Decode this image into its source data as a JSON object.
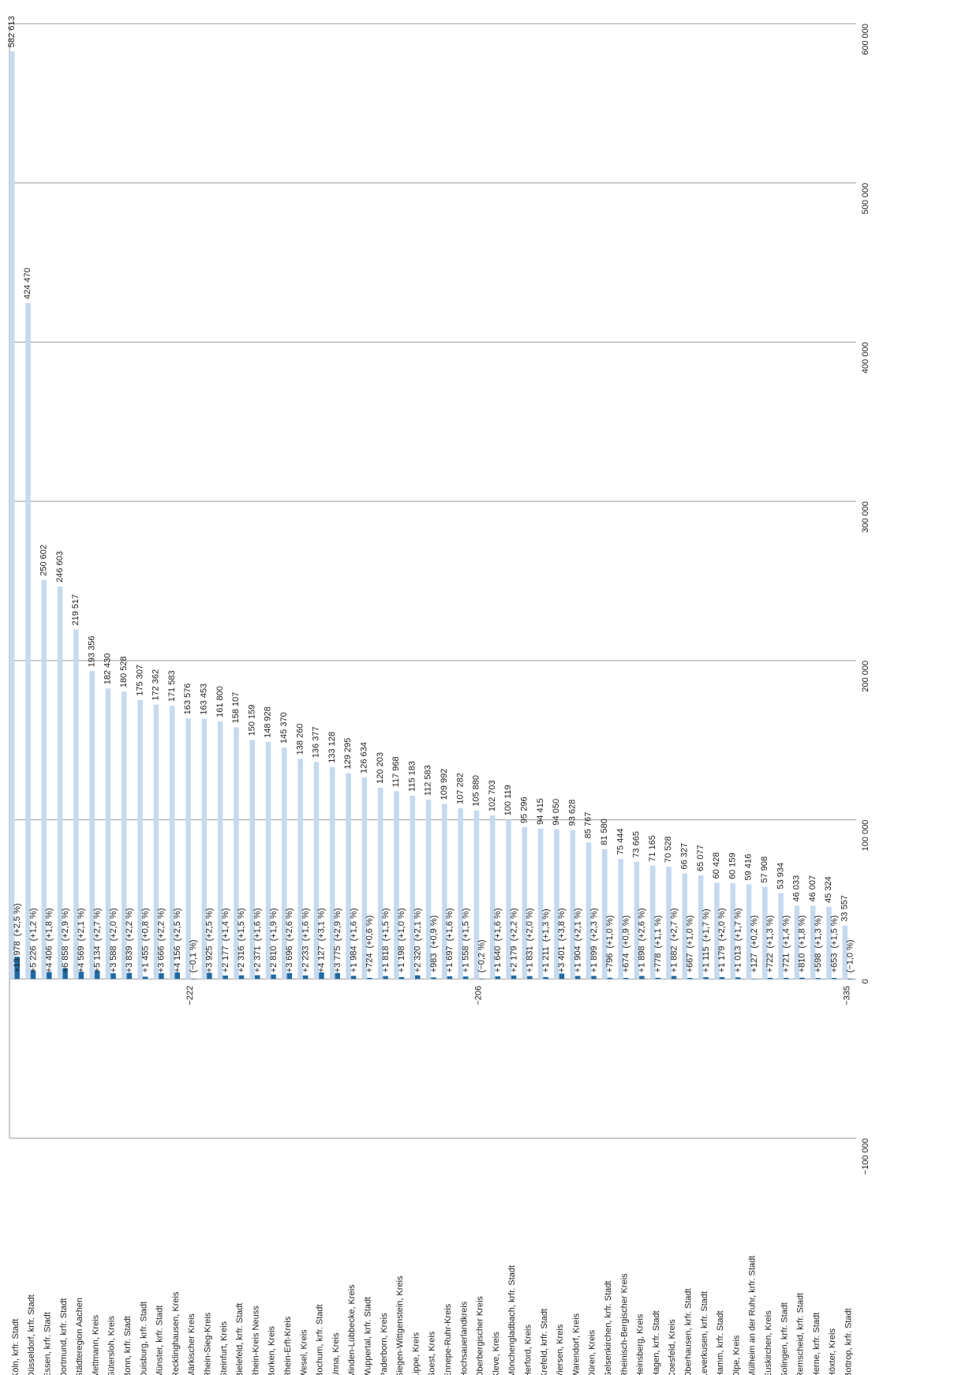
{
  "chart_data": {
    "type": "bar",
    "categories": [
      "Köln, krfr. Stadt",
      "Düsseldorf, krfr. Stadt",
      "Essen, krfr. Stadt",
      "Dortmund, krfr. Stadt",
      "Städteregion Aachen",
      "Mettmann, Kreis",
      "Gütersloh, Kreis",
      "Bonn, krfr. Stadt",
      "Duisburg, krfr. Stadt",
      "Münster, krfr. Stadt",
      "Recklinghausen, Kreis",
      "Märkischer Kreis",
      "Rhein-Sieg-Kreis",
      "Steinfurt, Kreis",
      "Bielefeld, krfr. Stadt",
      "Rhein-Kreis Neuss",
      "Borken, Kreis",
      "Rhein-Erft-Kreis",
      "Wesel, Kreis",
      "Bochum, krfr. Stadt",
      "Unna, Kreis",
      "Minden-Lübbecke, Kreis",
      "Wuppertal, krfr. Stadt",
      "Paderborn, Kreis",
      "Siegen-Wittgenstein, Kreis",
      "Lippe, Kreis",
      "Soest, Kreis",
      "Ennepe-Ruhr-Kreis",
      "Hochsauerlandkreis",
      "Oberbergischer Kreis",
      "Kleve, Kreis",
      "Mönchengladbach, krfr. Stadt",
      "Herford, Kreis",
      "Krefeld, krfr. Stadt",
      "Viersen, Kreis",
      "Warendorf, Kreis",
      "Düren, Kreis",
      "Gelsenkirchen, krfr. Stadt",
      "Rheinisch-Bergischer Kreis",
      "Heinsberg, Kreis",
      "Hagen, krfr. Stadt",
      "Coesfeld, Kreis",
      "Oberhausen, krfr. Stadt",
      "Leverkusen, krfr. Stadt",
      "Hamm, krfr. Stadt",
      "Olpe, Kreis",
      "Mülheim an der Ruhr, krfr. Stadt",
      "Euskirchen, Kreis",
      "Solingen, krfr. Stadt",
      "Remscheid, krfr. Stadt",
      "Herne, krfr. Stadt",
      "Höxter, Kreis",
      "Bottrop, krfr. Stadt"
    ],
    "series": [
      {
        "color": "#c6d9ee",
        "values": [
          582613,
          424470,
          250602,
          246603,
          219517,
          193356,
          182430,
          180528,
          175307,
          172362,
          171583,
          163576,
          163453,
          161800,
          158107,
          150159,
          148928,
          145370,
          138260,
          136377,
          133128,
          129295,
          126634,
          120203,
          117968,
          115183,
          112583,
          109992,
          107282,
          105880,
          102703,
          100119,
          95296,
          94415,
          94050,
          93628,
          85767,
          81580,
          75444,
          73665,
          71165,
          70528,
          66327,
          65077,
          60428,
          60159,
          59416,
          57908,
          53934,
          46033,
          46007,
          45324,
          33557
        ],
        "value_labels": [
          "582 613",
          "424 470",
          "250 602",
          "246 603",
          "219 517",
          "193 356",
          "182 430",
          "180 528",
          "175 307",
          "172 362",
          "171 583",
          "163 576",
          "163 453",
          "161 800",
          "158 107",
          "150 159",
          "148 928",
          "145 370",
          "138 260",
          "136 377",
          "133 128",
          "129 295",
          "126 634",
          "120 203",
          "117 968",
          "115 183",
          "112 583",
          "109 992",
          "107 282",
          "105 880",
          "102 703",
          "100 119",
          "95 296",
          "94 415",
          "94 050",
          "93 628",
          "85 767",
          "81 580",
          "75 444",
          "73 665",
          "71 165",
          "70 528",
          "66 327",
          "65 077",
          "60 428",
          "60 159",
          "59 416",
          "57 908",
          "53 934",
          "46 033",
          "46 007",
          "45 324",
          "33 557"
        ]
      },
      {
        "color": "#1f6aa5",
        "values": [
          13978,
          5226,
          4406,
          6858,
          4569,
          5134,
          3588,
          3839,
          1455,
          3666,
          4156,
          -222,
          3925,
          2177,
          2316,
          2371,
          2810,
          3696,
          2233,
          4127,
          3775,
          1984,
          724,
          1818,
          1198,
          2320,
          983,
          1697,
          1558,
          -206,
          1640,
          2179,
          1831,
          1211,
          3401,
          1904,
          1899,
          796,
          674,
          1898,
          778,
          1882,
          667,
          1115,
          1179,
          1013,
          127,
          722,
          721,
          810,
          598,
          653,
          -335
        ],
        "value_labels": [
          "+13 978",
          "+5 226",
          "+4 406",
          "+6 858",
          "+4 569",
          "+5 134",
          "+3 588",
          "+3 839",
          "+1 455",
          "+3 666",
          "+4 156",
          "−222",
          "+3 925",
          "+2 177",
          "+2 316",
          "+2 371",
          "+2 810",
          "+3 696",
          "+2 233",
          "+4 127",
          "+3 775",
          "+1 984",
          "+724",
          "+1 818",
          "+1 198",
          "+2 320",
          "+983",
          "+1 697",
          "+1 558",
          "−206",
          "+1 640",
          "+2 179",
          "+1 831",
          "+1 211",
          "+3 401",
          "+1 904",
          "+1 899",
          "+796",
          "+674",
          "+1 898",
          "+778",
          "+1 882",
          "+667",
          "+1 115",
          "+1 179",
          "+1 013",
          "+127",
          "+722",
          "+721",
          "+810",
          "+598",
          "+653",
          "−335"
        ],
        "percent_labels": [
          "(+2,5 %)",
          "(+1,2 %)",
          "(+1,8 %)",
          "(+2,9 %)",
          "(+2,1 %)",
          "(+2,7 %)",
          "(+2,0 %)",
          "(+2,2 %)",
          "(+0,8 %)",
          "(+2,2 %)",
          "(+2,5 %)",
          "(−0,1 %)",
          "(+2,5 %)",
          "(+1,4 %)",
          "(+1,5 %)",
          "(+1,6 %)",
          "(+1,9 %)",
          "(+2,6 %)",
          "(+1,6 %)",
          "(+3,1 %)",
          "(+2,9 %)",
          "(+1,6 %)",
          "(+0,6 %)",
          "(+1,5 %)",
          "(+1,0 %)",
          "(+2,1 %)",
          "(+0,9 %)",
          "(+1,6 %)",
          "(+1,5 %)",
          "(−0,2 %)",
          "(+1,6 %)",
          "(+2,2 %)",
          "(+2,0 %)",
          "(+1,3 %)",
          "(+3,8 %)",
          "(+2,1 %)",
          "(+2,3 %)",
          "(+1,0 %)",
          "(+0,9 %)",
          "(+2,6 %)",
          "(+1,1 %)",
          "(+2,7 %)",
          "(+1,0 %)",
          "(+1,7 %)",
          "(+2,0 %)",
          "(+1,7 %)",
          "(+0,2 %)",
          "(+1,3 %)",
          "(+1,4 %)",
          "(+1,8 %)",
          "(+1,3 %)",
          "(+1,5 %)",
          "(−1,0 %)"
        ]
      }
    ],
    "ylim": [
      -100000,
      600000
    ],
    "yticks": [
      {
        "value": -100000,
        "label": "−100 000"
      },
      0,
      {
        "value": 100000,
        "label": "100 000"
      },
      {
        "value": 200000,
        "label": "200 000"
      },
      {
        "value": 300000,
        "label": "300 000"
      },
      {
        "value": 400000,
        "label": "400 000"
      },
      {
        "value": 500000,
        "label": "500 000"
      },
      {
        "value": 600000,
        "label": "600 000"
      }
    ],
    "grid": true
  }
}
